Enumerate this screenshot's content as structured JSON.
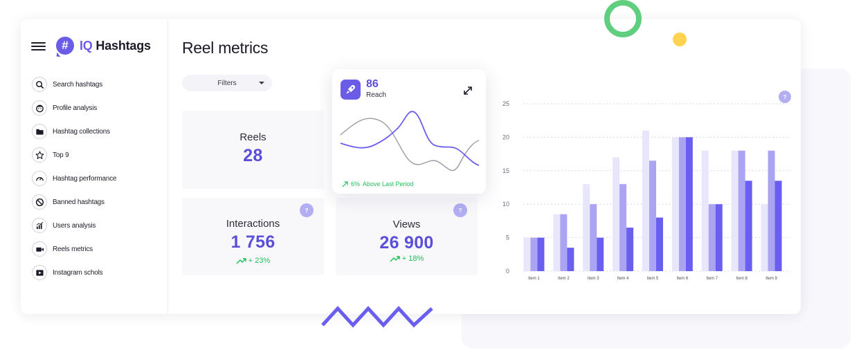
{
  "app": {
    "logo_mark": "#",
    "brand_prefix": "IQ",
    "brand_name": "Hashtags"
  },
  "sidebar": {
    "items": [
      {
        "label": "Search hashtags",
        "icon": "search-icon"
      },
      {
        "label": "Profile analysis",
        "icon": "face-icon"
      },
      {
        "label": "Hashtag collections",
        "icon": "folder-icon"
      },
      {
        "label": "Top 9",
        "icon": "star-icon"
      },
      {
        "label": "Hashtag performance",
        "icon": "gauge-icon"
      },
      {
        "label": "Banned hashtags",
        "icon": "ban-icon"
      },
      {
        "label": "Users analysis",
        "icon": "chart-icon"
      },
      {
        "label": "Reels metrics",
        "icon": "video-icon"
      },
      {
        "label": "Instagram schols",
        "icon": "play-icon"
      }
    ]
  },
  "page": {
    "title": "Reel metrics",
    "filters_label": "Filters"
  },
  "tiles": {
    "reels": {
      "label": "Reels",
      "value": "28"
    },
    "interactions": {
      "label": "Interactions",
      "value": "1 756",
      "trend": "+ 23%",
      "help": "?"
    },
    "views": {
      "label": "Views",
      "value": "26 900",
      "trend": "+ 18%",
      "help": "?"
    }
  },
  "reach": {
    "value": "86",
    "label": "Reach",
    "trend_value": "6%",
    "trend_text": "Above Last Period"
  },
  "chart_help": "?",
  "colors": {
    "accent": "#6b5ce7",
    "positive": "#1fbf5a",
    "bar_light": "#e8e6fb",
    "bar_mid": "#aaa4f2",
    "bar_dark": "#6a5ef0"
  },
  "chart_data": {
    "type": "bar",
    "categories": [
      "Item 1",
      "Item 2",
      "Item 3",
      "Item 4",
      "Item 5",
      "Item 6",
      "Item 7",
      "Item 8",
      "Item 9"
    ],
    "series": [
      {
        "values": [
          5,
          8.5,
          13,
          17,
          21,
          20,
          18,
          18,
          10
        ]
      },
      {
        "values": [
          5,
          8.5,
          10,
          13,
          16.5,
          20,
          10,
          18,
          18
        ]
      },
      {
        "values": [
          5,
          3.5,
          5,
          6.5,
          8,
          20,
          10,
          13.5,
          13.5
        ]
      }
    ],
    "y_ticks": [
      0,
      5,
      10,
      15,
      20,
      25
    ],
    "ylim": [
      0,
      25
    ],
    "grid": true
  }
}
